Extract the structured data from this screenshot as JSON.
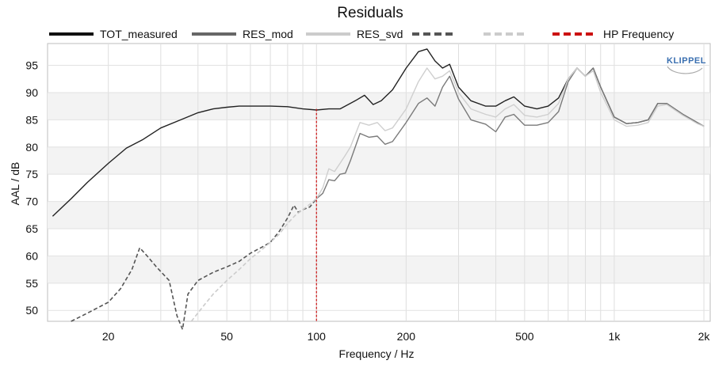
{
  "chart_data": {
    "type": "line",
    "title": "Residuals",
    "xlabel": "Frequency / Hz",
    "ylabel": "AAL / dB",
    "xscale": "log",
    "xlim": [
      12.5,
      2100
    ],
    "ylim": [
      48,
      99
    ],
    "grid": true,
    "legend_position": "top",
    "x_ticks": [
      {
        "value": 20,
        "label": "20"
      },
      {
        "value": 50,
        "label": "50"
      },
      {
        "value": 100,
        "label": "100"
      },
      {
        "value": 200,
        "label": "200"
      },
      {
        "value": 500,
        "label": "500"
      },
      {
        "value": 1000,
        "label": "1k"
      },
      {
        "value": 2000,
        "label": "2k"
      }
    ],
    "y_ticks": [
      {
        "value": 50,
        "label": "50"
      },
      {
        "value": 55,
        "label": "55"
      },
      {
        "value": 60,
        "label": "60"
      },
      {
        "value": 65,
        "label": "65"
      },
      {
        "value": 70,
        "label": "70"
      },
      {
        "value": 75,
        "label": "75"
      },
      {
        "value": 80,
        "label": "80"
      },
      {
        "value": 85,
        "label": "85"
      },
      {
        "value": 90,
        "label": "90"
      },
      {
        "value": 95,
        "label": "95"
      }
    ],
    "legend": [
      {
        "label": "TOT_measured",
        "color": "#111111",
        "dash": "solid",
        "weight": 4
      },
      {
        "label": "RES_mod",
        "color": "#666666",
        "dash": "solid",
        "weight": 4
      },
      {
        "label": "RES_svd",
        "color": "#cccccc",
        "dash": "solid",
        "weight": 4
      },
      {
        "label": "",
        "color": "#555555",
        "dash": "dashed",
        "weight": 4
      },
      {
        "label": "",
        "color": "#cccccc",
        "dash": "dashed",
        "weight": 4
      },
      {
        "label": "HP Frequency",
        "color": "#cc1111",
        "dash": "dashed",
        "weight": 4
      }
    ],
    "series": [
      {
        "name": "TOT_measured",
        "color": "#222222",
        "dash": "solid",
        "x": [
          13,
          15,
          17,
          20,
          23,
          26,
          30,
          35,
          40,
          45,
          50,
          55,
          60,
          70,
          80,
          90,
          100,
          110,
          120,
          135,
          145,
          155,
          165,
          180,
          200,
          220,
          235,
          250,
          265,
          280,
          300,
          330,
          370,
          400,
          430,
          460,
          500,
          550,
          600,
          650,
          700,
          750,
          800,
          850,
          900,
          1000,
          1100,
          1200,
          1300,
          1400,
          1500,
          1700,
          1900,
          2000
        ],
        "y": [
          67.3,
          70.5,
          73.5,
          77.0,
          79.8,
          81.3,
          83.5,
          85.0,
          86.3,
          87.0,
          87.3,
          87.5,
          87.5,
          87.5,
          87.4,
          87.0,
          86.8,
          87.0,
          87.0,
          88.5,
          89.5,
          87.8,
          88.5,
          90.5,
          94.5,
          97.5,
          98.0,
          95.8,
          94.5,
          95.2,
          91.0,
          88.5,
          87.5,
          87.5,
          88.5,
          89.2,
          87.5,
          87.0,
          87.5,
          89.0,
          92.5,
          94.5,
          93.0,
          94.5,
          91.0,
          85.5,
          84.3,
          84.5,
          85.0,
          88.0,
          88.0,
          86.0,
          84.5,
          83.8
        ]
      },
      {
        "name": "RES_mod",
        "color": "#7a7a7a",
        "dash": "solid",
        "x": [
          100,
          105,
          110,
          115,
          120,
          125,
          130,
          140,
          150,
          160,
          170,
          180,
          200,
          220,
          235,
          250,
          265,
          280,
          300,
          330,
          370,
          400,
          430,
          460,
          500,
          550,
          600,
          650,
          700,
          750,
          800,
          850,
          900,
          1000,
          1100,
          1200,
          1300,
          1400,
          1500,
          1700,
          1900,
          2000
        ],
        "y": [
          70.5,
          71.5,
          74.0,
          73.8,
          75.0,
          75.2,
          77.5,
          82.5,
          81.8,
          82.0,
          80.5,
          81.0,
          84.5,
          88.0,
          89.0,
          87.5,
          91.0,
          93.0,
          88.8,
          85.0,
          84.2,
          82.8,
          85.5,
          86.0,
          84.0,
          84.0,
          84.5,
          86.5,
          92.0,
          94.5,
          93.0,
          94.5,
          91.0,
          85.5,
          84.3,
          84.5,
          85.0,
          88.0,
          88.0,
          86.0,
          84.5,
          83.8
        ]
      },
      {
        "name": "RES_svd",
        "color": "#cfcfcf",
        "dash": "solid",
        "x": [
          100,
          105,
          110,
          115,
          120,
          125,
          130,
          140,
          150,
          160,
          170,
          180,
          200,
          220,
          235,
          250,
          265,
          280,
          300,
          330,
          370,
          400,
          430,
          460,
          500,
          550,
          600,
          650,
          700,
          750,
          800,
          850,
          900,
          1000,
          1100,
          1200,
          1300,
          1400,
          1500,
          1700,
          1900,
          2000
        ],
        "y": [
          70.5,
          72.5,
          76.0,
          75.5,
          77.0,
          78.5,
          80.0,
          84.5,
          84.0,
          84.5,
          83.0,
          83.5,
          87.0,
          92.0,
          94.5,
          92.5,
          93.0,
          94.0,
          90.0,
          87.0,
          86.0,
          85.5,
          87.0,
          87.8,
          85.8,
          85.5,
          86.0,
          88.0,
          92.5,
          94.5,
          93.0,
          94.0,
          90.0,
          85.0,
          83.8,
          84.0,
          84.5,
          87.5,
          87.8,
          85.8,
          84.3,
          83.8
        ]
      },
      {
        "name": "",
        "color": "#555555",
        "dash": "dashed",
        "x": [
          15,
          17,
          20,
          22,
          24,
          25.5,
          27,
          29,
          32,
          34,
          35.5,
          37,
          40,
          45,
          50,
          55,
          60,
          65,
          70,
          75,
          80,
          84,
          87,
          90,
          95,
          100
        ],
        "y": [
          48.0,
          49.5,
          51.5,
          54.0,
          57.5,
          61.5,
          60.0,
          58.0,
          55.5,
          49.0,
          46.5,
          53.0,
          55.5,
          57.0,
          58.0,
          59.0,
          60.5,
          61.5,
          62.5,
          64.5,
          67.0,
          69.3,
          68.0,
          68.5,
          69.0,
          70.5
        ]
      },
      {
        "name": "",
        "color": "#cccccc",
        "dash": "dashed",
        "x": [
          38,
          42,
          45,
          50,
          55,
          60,
          65,
          70,
          75,
          80,
          85,
          90,
          95,
          100
        ],
        "y": [
          48.0,
          51.0,
          53.0,
          55.5,
          57.5,
          59.5,
          61.0,
          62.5,
          64.0,
          66.0,
          67.5,
          68.5,
          69.5,
          70.5
        ]
      }
    ],
    "hp_frequency": 100,
    "logo": "KLIPPEL"
  }
}
